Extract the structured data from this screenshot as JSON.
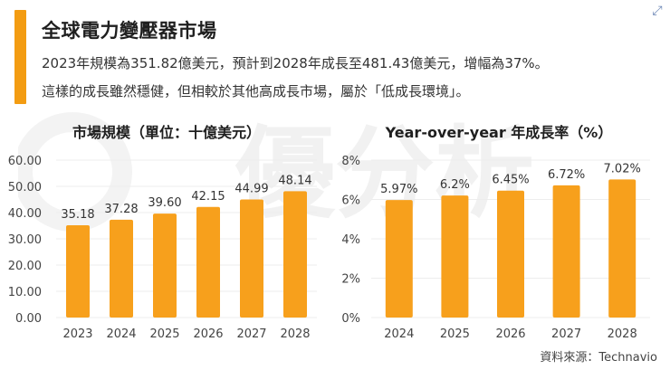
{
  "header": {
    "title": "全球電力變壓器市場",
    "line1": "2023年規模為351.82億美元，預計到2028年成長至481.43億美元，增幅為37%。",
    "line2": "這樣的成長雖然穩健，但相較於其他高成長市場，屬於「低成長環境」。"
  },
  "watermark": {
    "text": "優分析"
  },
  "source": "資料來源：Technavio",
  "colors": {
    "accent": "#f39c12",
    "bar": "#f7a01c",
    "grid": "#e6e6e6",
    "watermark": "#efefef"
  },
  "chart_data": [
    {
      "type": "bar",
      "title": "市場規模（單位：十億美元）",
      "categories": [
        "2023",
        "2024",
        "2025",
        "2026",
        "2027",
        "2028"
      ],
      "values": [
        35.18,
        37.28,
        39.6,
        42.15,
        44.99,
        48.14
      ],
      "labels": [
        "35.18",
        "37.28",
        "39.60",
        "42.15",
        "44.99",
        "48.14"
      ],
      "yticks": [
        "0.00",
        "10.00",
        "20.00",
        "30.00",
        "40.00",
        "50.00",
        "60.00"
      ],
      "ylim": [
        0,
        60
      ],
      "xlabel": "",
      "ylabel": ""
    },
    {
      "type": "bar",
      "title": "Year-over-year 年成長率（%）",
      "categories": [
        "2024",
        "2025",
        "2026",
        "2027",
        "2028"
      ],
      "values": [
        5.97,
        6.2,
        6.45,
        6.72,
        7.02
      ],
      "labels": [
        "5.97%",
        "6.2%",
        "6.45%",
        "6.72%",
        "7.02%"
      ],
      "yticks": [
        "0%",
        "2%",
        "4%",
        "6%",
        "8%"
      ],
      "ylim": [
        0,
        8
      ],
      "xlabel": "",
      "ylabel": ""
    }
  ]
}
